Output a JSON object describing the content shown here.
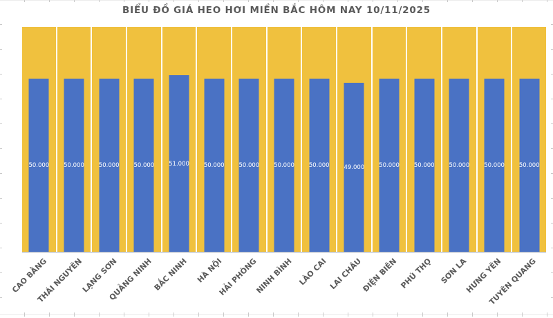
{
  "colors": {
    "plot_fill": "#f0c13e",
    "bar_fill": "#4a72c4",
    "axis_text": "#595959",
    "value_label_text": "#ffffff",
    "category_separator": "#ffffff",
    "axis_line": "#9aa3b5",
    "worksheet_gridline": "#ececec",
    "worksheet_tick": "#c9c9c9"
  },
  "chart_data": {
    "type": "bar",
    "title": "BIỂU ĐỒ GIÁ HEO HƠI MIỀN BẮC HÔM NAY 10/11/2025",
    "categories": [
      "CAO BẰNG",
      "THÁI NGUYÊN",
      "LẠNG SƠN",
      "QUẢNG NINH",
      "BẮC NINH",
      "HÀ NỘI",
      "HẢI PHÒNG",
      "NINH BÌNH",
      "LÀO CAI",
      "LAI CHÂU",
      "ĐIỆN BIÊN",
      "PHÚ THỌ",
      "SƠN LA",
      "HƯNG YÊN",
      "TUYÊN QUANG"
    ],
    "values": [
      50000,
      50000,
      50000,
      50000,
      51000,
      50000,
      50000,
      50000,
      50000,
      49000,
      50000,
      50000,
      50000,
      50000,
      50000
    ],
    "value_labels": [
      "50.000",
      "50.000",
      "50.000",
      "50.000",
      "51.000",
      "50.000",
      "50.000",
      "50.000",
      "50.000",
      "49.000",
      "50.000",
      "50.000",
      "50.000",
      "50.000",
      "50.000"
    ],
    "xlabel": "",
    "ylabel": "",
    "ylim": [
      0,
      65000
    ],
    "legend": "none",
    "grid": "vertical white separators between categories",
    "data_label_position": "inside-center",
    "x_tick_rotation_deg": 45,
    "plot_background": "gold bars full height behind blue value bars"
  }
}
